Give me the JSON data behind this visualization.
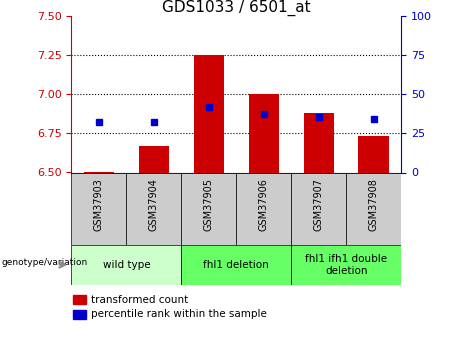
{
  "title": "GDS1033 / 6501_at",
  "samples": [
    "GSM37903",
    "GSM37904",
    "GSM37905",
    "GSM37906",
    "GSM37907",
    "GSM37908"
  ],
  "bar_values": [
    6.505,
    6.67,
    7.25,
    7.0,
    6.88,
    6.73
  ],
  "bar_baseline": 6.5,
  "percentile_values": [
    6.82,
    6.82,
    6.92,
    6.875,
    6.855,
    6.84
  ],
  "ylim": [
    6.5,
    7.5
  ],
  "yticks_left": [
    6.5,
    6.75,
    7.0,
    7.25,
    7.5
  ],
  "yticks_right": [
    0,
    25,
    50,
    75,
    100
  ],
  "left_axis_color": "#cc0000",
  "right_axis_color": "#0000cc",
  "bar_color": "#cc0000",
  "dot_color": "#0000cc",
  "group_boundaries": [
    [
      0,
      2,
      "wild type"
    ],
    [
      2,
      4,
      "fhl1 deletion"
    ],
    [
      4,
      6,
      "fhl1 ifh1 double\ndeletion"
    ]
  ],
  "group_colors": [
    "#ccffcc",
    "#66ff66",
    "#66ff66"
  ],
  "sample_bg_color": "#cccccc",
  "legend_red_label": "transformed count",
  "legend_blue_label": "percentile rank within the sample",
  "genotype_label": "genotype/variation",
  "title_fontsize": 11,
  "tick_fontsize": 8,
  "axis_label_fontsize": 8
}
